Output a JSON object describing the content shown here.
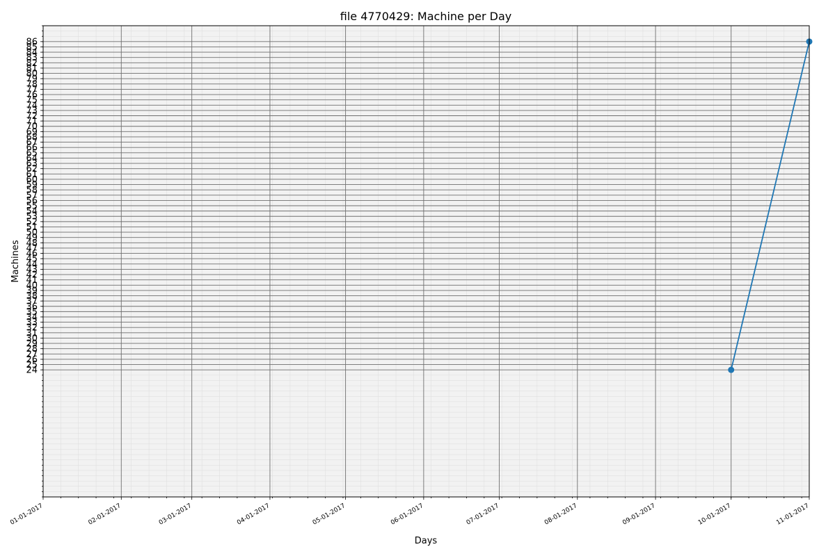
{
  "chart_data": {
    "type": "line",
    "title": "file 4770429: Machine per Day",
    "xlabel": "Days",
    "ylabel": "Machines",
    "x_ticks": [
      "01-01-2017",
      "02-01-2017",
      "03-01-2017",
      "04-01-2017",
      "05-01-2017",
      "06-01-2017",
      "07-01-2017",
      "08-01-2017",
      "09-01-2017",
      "10-01-2017",
      "11-01-2017"
    ],
    "y_ticks": [
      "24",
      "25",
      "26",
      "27",
      "28",
      "29",
      "30",
      "31",
      "32",
      "33",
      "34",
      "35",
      "36",
      "37",
      "38",
      "39",
      "40",
      "41",
      "42",
      "43",
      "44",
      "45",
      "46",
      "47",
      "48",
      "49",
      "50",
      "51",
      "52",
      "53",
      "54",
      "55",
      "56",
      "57",
      "58",
      "59",
      "60",
      "61",
      "62",
      "63",
      "64",
      "65",
      "66",
      "67",
      "68",
      "69",
      "70",
      "71",
      "72",
      "73",
      "74",
      "75",
      "76",
      "77",
      "78",
      "79",
      "80",
      "81",
      "82",
      "83",
      "84",
      "85",
      "86"
    ],
    "xlim": [
      "01-01-2017",
      "11-01-2017"
    ],
    "ylim": [
      0,
      89
    ],
    "grid": true,
    "series": [
      {
        "x": [
          "10-01-2017",
          "11-01-2017"
        ],
        "values": [
          24,
          86
        ],
        "color": "#1f77b4",
        "marker": "circle"
      }
    ]
  }
}
